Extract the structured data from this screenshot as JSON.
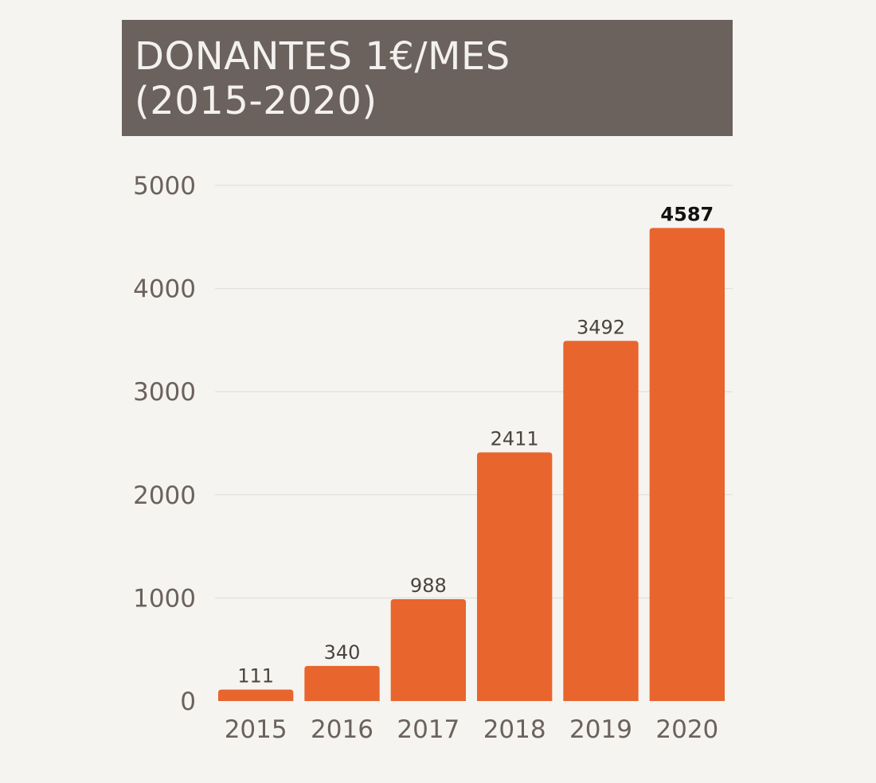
{
  "title": {
    "line1": "DONANTES 1€/MES",
    "line2": "(2015-2020)"
  },
  "chart_data": {
    "type": "bar",
    "categories": [
      "2015",
      "2016",
      "2017",
      "2018",
      "2019",
      "2020"
    ],
    "values": [
      111,
      340,
      988,
      2411,
      3492,
      4587
    ],
    "data_labels": [
      "111",
      "340",
      "988",
      "2411",
      "3492",
      "4587"
    ],
    "highlighted_label_index": 5,
    "title": "DONANTES 1€/MES (2015-2020)",
    "xlabel": "",
    "ylabel": "",
    "ylim": [
      0,
      5000
    ],
    "yticks": [
      0,
      1000,
      2000,
      3000,
      4000,
      5000
    ],
    "ytick_labels": [
      "0",
      "1000",
      "2000",
      "3000",
      "4000",
      "5000"
    ],
    "grid": true,
    "legend": "none",
    "colors": {
      "bar": "#e8652d",
      "title_bg": "#6b615d",
      "title_text": "#f3f1ee",
      "background": "#f5f4f0",
      "grid": "#dedbd6",
      "axis_text": "#6b615d"
    }
  }
}
